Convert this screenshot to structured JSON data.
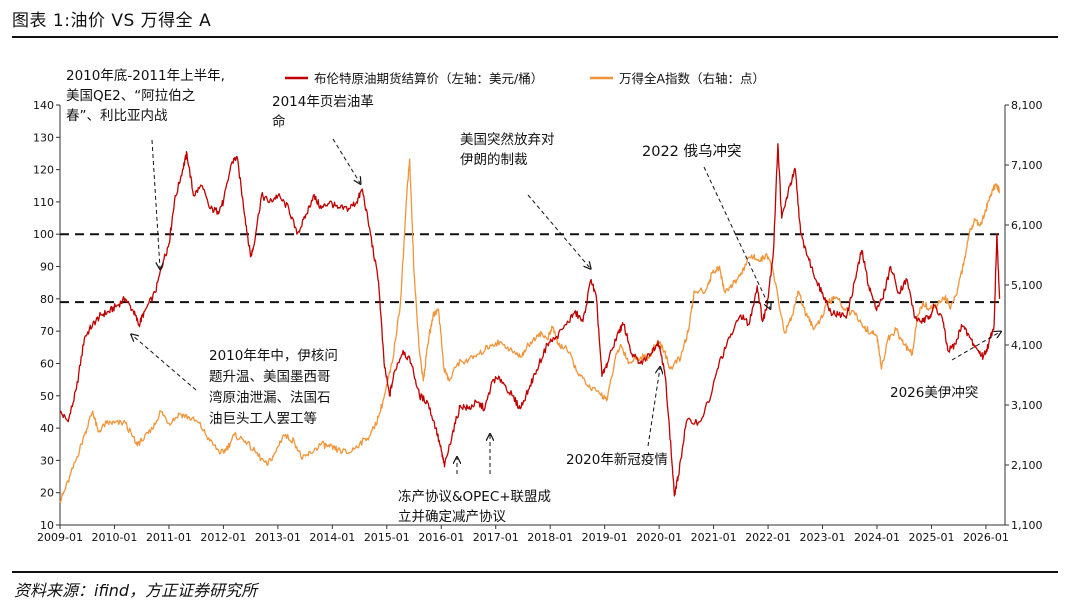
{
  "figure_title": "图表 1:油价 VS 万得全 A",
  "source": "资料来源：ifind，方正证券研究所",
  "chart_data": {
    "type": "line",
    "title": "",
    "x_ticks": [
      "2009-01",
      "2010-01",
      "2011-01",
      "2012-01",
      "2013-01",
      "2014-01",
      "2015-01",
      "2016-01",
      "2017-01",
      "2018-01",
      "2019-01",
      "2020-01",
      "2021-01",
      "2022-01",
      "2023-01",
      "2024-01",
      "2025-01",
      "2026-01"
    ],
    "x_range": [
      2009.0,
      2026.35
    ],
    "y_left": {
      "range": [
        10,
        140
      ],
      "ticks": [
        10,
        20,
        30,
        40,
        50,
        60,
        70,
        80,
        90,
        100,
        110,
        120,
        130,
        140
      ]
    },
    "y_right": {
      "range": [
        1100,
        8100
      ],
      "ticks": [
        "1,100",
        "2,100",
        "3,100",
        "4,100",
        "5,100",
        "6,100",
        "7,100",
        "8,100"
      ],
      "tick_values": [
        1100,
        2100,
        3100,
        4100,
        5100,
        6100,
        7100,
        8100
      ]
    },
    "reference_lines_left": [
      100,
      79
    ],
    "legend_position": "top",
    "series": [
      {
        "name": "布伦特原油期货结算价（左轴：美元/桶）",
        "axis": "left",
        "color": "#c00000",
        "points": [
          [
            2009.0,
            45
          ],
          [
            2009.15,
            42
          ],
          [
            2009.3,
            52
          ],
          [
            2009.45,
            68
          ],
          [
            2009.6,
            72
          ],
          [
            2009.75,
            75
          ],
          [
            2009.9,
            76
          ],
          [
            2010.05,
            78
          ],
          [
            2010.2,
            80
          ],
          [
            2010.35,
            76
          ],
          [
            2010.45,
            72
          ],
          [
            2010.55,
            76
          ],
          [
            2010.75,
            82
          ],
          [
            2010.9,
            92
          ],
          [
            2011.0,
            97
          ],
          [
            2011.1,
            110
          ],
          [
            2011.25,
            120
          ],
          [
            2011.33,
            125
          ],
          [
            2011.45,
            112
          ],
          [
            2011.6,
            115
          ],
          [
            2011.75,
            108
          ],
          [
            2011.9,
            107
          ],
          [
            2012.0,
            110
          ],
          [
            2012.15,
            122
          ],
          [
            2012.25,
            124
          ],
          [
            2012.4,
            105
          ],
          [
            2012.5,
            93
          ],
          [
            2012.55,
            96
          ],
          [
            2012.7,
            112
          ],
          [
            2012.85,
            110
          ],
          [
            2013.0,
            112
          ],
          [
            2013.2,
            108
          ],
          [
            2013.35,
            100
          ],
          [
            2013.5,
            105
          ],
          [
            2013.65,
            112
          ],
          [
            2013.8,
            108
          ],
          [
            2013.95,
            110
          ],
          [
            2014.1,
            108
          ],
          [
            2014.3,
            108
          ],
          [
            2014.45,
            110
          ],
          [
            2014.55,
            114
          ],
          [
            2014.7,
            100
          ],
          [
            2014.85,
            85
          ],
          [
            2014.95,
            60
          ],
          [
            2015.05,
            50
          ],
          [
            2015.15,
            58
          ],
          [
            2015.3,
            64
          ],
          [
            2015.45,
            60
          ],
          [
            2015.6,
            50
          ],
          [
            2015.75,
            48
          ],
          [
            2015.9,
            40
          ],
          [
            2016.0,
            33
          ],
          [
            2016.06,
            28
          ],
          [
            2016.2,
            38
          ],
          [
            2016.35,
            47
          ],
          [
            2016.5,
            46
          ],
          [
            2016.65,
            48
          ],
          [
            2016.8,
            46
          ],
          [
            2016.95,
            55
          ],
          [
            2017.1,
            55
          ],
          [
            2017.3,
            50
          ],
          [
            2017.45,
            46
          ],
          [
            2017.6,
            52
          ],
          [
            2017.75,
            58
          ],
          [
            2017.95,
            66
          ],
          [
            2018.1,
            68
          ],
          [
            2018.3,
            72
          ],
          [
            2018.45,
            76
          ],
          [
            2018.6,
            73
          ],
          [
            2018.75,
            86
          ],
          [
            2018.85,
            80
          ],
          [
            2018.95,
            56
          ],
          [
            2019.05,
            60
          ],
          [
            2019.25,
            70
          ],
          [
            2019.35,
            72
          ],
          [
            2019.5,
            63
          ],
          [
            2019.65,
            60
          ],
          [
            2019.85,
            63
          ],
          [
            2019.98,
            67
          ],
          [
            2020.05,
            62
          ],
          [
            2020.12,
            55
          ],
          [
            2020.22,
            33
          ],
          [
            2020.28,
            19
          ],
          [
            2020.35,
            25
          ],
          [
            2020.5,
            42
          ],
          [
            2020.75,
            42
          ],
          [
            2020.95,
            50
          ],
          [
            2021.1,
            60
          ],
          [
            2021.3,
            68
          ],
          [
            2021.5,
            75
          ],
          [
            2021.65,
            72
          ],
          [
            2021.8,
            84
          ],
          [
            2021.9,
            73
          ],
          [
            2021.98,
            78
          ],
          [
            2022.1,
            95
          ],
          [
            2022.18,
            128
          ],
          [
            2022.25,
            105
          ],
          [
            2022.4,
            115
          ],
          [
            2022.5,
            120
          ],
          [
            2022.6,
            100
          ],
          [
            2022.75,
            92
          ],
          [
            2022.9,
            85
          ],
          [
            2023.0,
            82
          ],
          [
            2023.15,
            76
          ],
          [
            2023.3,
            75
          ],
          [
            2023.45,
            75
          ],
          [
            2023.6,
            86
          ],
          [
            2023.72,
            95
          ],
          [
            2023.85,
            84
          ],
          [
            2023.98,
            77
          ],
          [
            2024.1,
            80
          ],
          [
            2024.25,
            90
          ],
          [
            2024.4,
            82
          ],
          [
            2024.55,
            86
          ],
          [
            2024.7,
            74
          ],
          [
            2024.85,
            73
          ],
          [
            2024.98,
            75
          ],
          [
            2025.05,
            78
          ],
          [
            2025.2,
            74
          ],
          [
            2025.3,
            64
          ],
          [
            2025.45,
            66
          ],
          [
            2025.55,
            72
          ],
          [
            2025.7,
            68
          ],
          [
            2025.85,
            64
          ],
          [
            2025.95,
            62
          ],
          [
            2026.05,
            66
          ],
          [
            2026.15,
            72
          ],
          [
            2026.2,
            100
          ],
          [
            2026.25,
            80
          ]
        ]
      },
      {
        "name": "万得全A指数（右轴：点）",
        "axis": "right",
        "color": "#f0953a",
        "points": [
          [
            2009.0,
            1500
          ],
          [
            2009.1,
            1700
          ],
          [
            2009.3,
            2200
          ],
          [
            2009.45,
            2600
          ],
          [
            2009.6,
            3000
          ],
          [
            2009.7,
            2650
          ],
          [
            2009.85,
            2800
          ],
          [
            2010.0,
            2800
          ],
          [
            2010.2,
            2800
          ],
          [
            2010.4,
            2450
          ],
          [
            2010.5,
            2500
          ],
          [
            2010.7,
            2700
          ],
          [
            2010.85,
            3000
          ],
          [
            2011.0,
            2800
          ],
          [
            2011.2,
            2950
          ],
          [
            2011.35,
            2900
          ],
          [
            2011.55,
            2800
          ],
          [
            2011.75,
            2500
          ],
          [
            2011.95,
            2300
          ],
          [
            2012.05,
            2350
          ],
          [
            2012.2,
            2600
          ],
          [
            2012.4,
            2500
          ],
          [
            2012.6,
            2300
          ],
          [
            2012.8,
            2100
          ],
          [
            2012.95,
            2300
          ],
          [
            2013.1,
            2600
          ],
          [
            2013.3,
            2500
          ],
          [
            2013.45,
            2200
          ],
          [
            2013.6,
            2300
          ],
          [
            2013.8,
            2450
          ],
          [
            2013.95,
            2400
          ],
          [
            2014.1,
            2350
          ],
          [
            2014.3,
            2300
          ],
          [
            2014.5,
            2450
          ],
          [
            2014.7,
            2600
          ],
          [
            2014.85,
            2900
          ],
          [
            2014.97,
            3300
          ],
          [
            2015.1,
            3800
          ],
          [
            2015.25,
            4800
          ],
          [
            2015.38,
            6800
          ],
          [
            2015.42,
            7200
          ],
          [
            2015.5,
            5300
          ],
          [
            2015.6,
            4000
          ],
          [
            2015.67,
            3500
          ],
          [
            2015.75,
            4100
          ],
          [
            2015.85,
            4600
          ],
          [
            2015.95,
            4700
          ],
          [
            2016.05,
            3700
          ],
          [
            2016.15,
            3500
          ],
          [
            2016.3,
            3800
          ],
          [
            2016.5,
            3850
          ],
          [
            2016.7,
            3950
          ],
          [
            2016.9,
            4100
          ],
          [
            2017.1,
            4150
          ],
          [
            2017.3,
            4000
          ],
          [
            2017.45,
            3900
          ],
          [
            2017.6,
            4100
          ],
          [
            2017.8,
            4300
          ],
          [
            2017.95,
            4200
          ],
          [
            2018.05,
            4400
          ],
          [
            2018.15,
            4100
          ],
          [
            2018.3,
            4050
          ],
          [
            2018.5,
            3650
          ],
          [
            2018.7,
            3400
          ],
          [
            2018.9,
            3300
          ],
          [
            2019.05,
            3200
          ],
          [
            2019.2,
            3900
          ],
          [
            2019.3,
            4100
          ],
          [
            2019.45,
            3800
          ],
          [
            2019.6,
            3900
          ],
          [
            2019.8,
            3900
          ],
          [
            2019.98,
            4150
          ],
          [
            2020.1,
            4000
          ],
          [
            2020.2,
            3700
          ],
          [
            2020.4,
            3900
          ],
          [
            2020.55,
            4400
          ],
          [
            2020.65,
            5000
          ],
          [
            2020.85,
            5000
          ],
          [
            2020.98,
            5300
          ],
          [
            2021.1,
            5400
          ],
          [
            2021.2,
            5000
          ],
          [
            2021.35,
            5100
          ],
          [
            2021.5,
            5300
          ],
          [
            2021.7,
            5600
          ],
          [
            2021.85,
            5500
          ],
          [
            2021.98,
            5600
          ],
          [
            2022.1,
            5300
          ],
          [
            2022.3,
            4300
          ],
          [
            2022.45,
            4600
          ],
          [
            2022.55,
            5000
          ],
          [
            2022.7,
            4600
          ],
          [
            2022.82,
            4400
          ],
          [
            2022.95,
            4500
          ],
          [
            2023.1,
            4800
          ],
          [
            2023.25,
            4900
          ],
          [
            2023.4,
            4700
          ],
          [
            2023.6,
            4600
          ],
          [
            2023.75,
            4400
          ],
          [
            2023.9,
            4300
          ],
          [
            2024.0,
            4250
          ],
          [
            2024.08,
            3700
          ],
          [
            2024.2,
            4200
          ],
          [
            2024.35,
            4350
          ],
          [
            2024.5,
            4100
          ],
          [
            2024.65,
            3950
          ],
          [
            2024.75,
            4600
          ],
          [
            2024.85,
            4800
          ],
          [
            2024.98,
            4700
          ],
          [
            2025.1,
            4750
          ],
          [
            2025.25,
            4900
          ],
          [
            2025.35,
            4700
          ],
          [
            2025.5,
            5100
          ],
          [
            2025.6,
            5500
          ],
          [
            2025.7,
            6000
          ],
          [
            2025.8,
            6200
          ],
          [
            2025.9,
            6100
          ],
          [
            2025.98,
            6300
          ],
          [
            2026.05,
            6500
          ],
          [
            2026.12,
            6700
          ],
          [
            2026.2,
            6750
          ],
          [
            2026.25,
            6650
          ]
        ]
      }
    ],
    "annotations": [
      {
        "lines": [
          "2010年底-2011年上半年,",
          "美国QE2、“阿拉伯之",
          "春”、利比亚内战"
        ]
      },
      {
        "lines": [
          "2014年页岩油革",
          "命"
        ]
      },
      {
        "lines": [
          "美国突然放弃对",
          "伊朗的制裁"
        ]
      },
      {
        "lines": [
          "2022 俄乌冲突"
        ]
      },
      {
        "lines": [
          "2010年年中，伊核问",
          "题升温、美国墨西哥",
          "湾原油泄漏、法国石",
          "油巨头工人罢工等"
        ]
      },
      {
        "lines": [
          "冻产协议&OPEC+联盟成",
          "立并确定减产协议"
        ]
      },
      {
        "lines": [
          "2020年新冠疫情"
        ]
      },
      {
        "lines": [
          "2026美伊冲突"
        ]
      }
    ]
  }
}
